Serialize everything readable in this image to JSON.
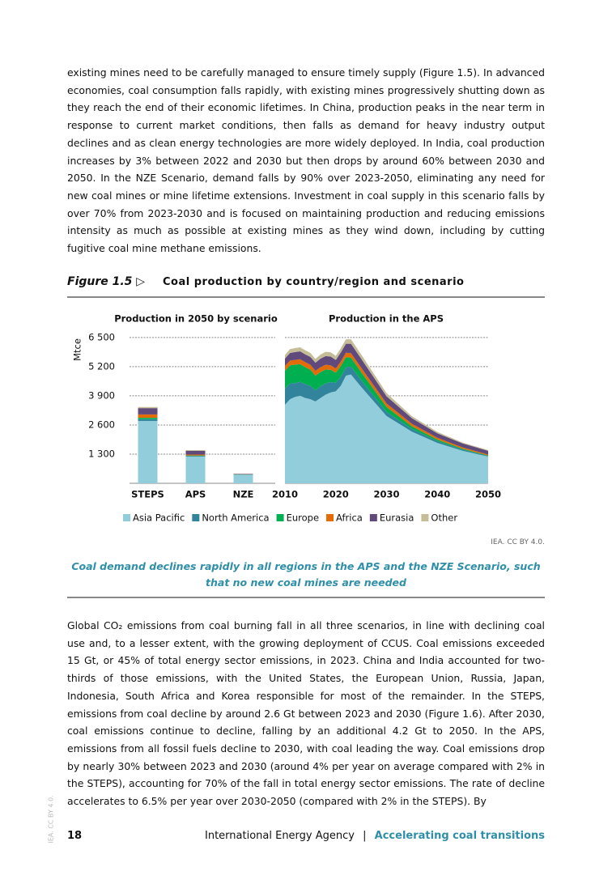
{
  "paragraphs": [
    "existing mines need to be carefully managed to ensure timely supply (Figure 1.5). In advanced economies, coal consumption falls rapidly, with existing mines progressively shutting down as they reach the end of their economic lifetimes. In China, production peaks in the near term in response to current market conditions, then falls as demand for heavy industry output declines and as clean energy technologies are more widely deployed. In India, coal production increases by 3% between 2022 and 2030 but then drops by around 60% between 2030 and 2050. In the NZE Scenario, demand falls by 90% over 2023-2050, eliminating any need for new coal mines or mine lifetime extensions. Investment in coal supply in this scenario falls by over 70% from 2023-2030 and is focused on maintaining production and reducing emissions intensity as much as possible at existing mines as they wind down, including by cutting fugitive coal mine methane emissions.",
    "Global CO₂ emissions from coal burning fall in all three scenarios, in line with declining coal use and, to a lesser extent, with the growing deployment of CCUS. Coal emissions exceeded 15 Gt, or 45% of total energy sector emissions, in 2023. China and India accounted for two-thirds of those emissions, with the United States, the European Union, Russia, Japan, Indonesia, South Africa and Korea responsible for most of the remainder. In the STEPS, emissions from coal decline by around 2.6 Gt between 2023 and 2030 (Figure 1.6). After 2030, coal emissions continue to decline, falling by an additional 4.2 Gt to 2050. In the APS, emissions from all fossil fuels decline to 2030, with coal leading the way. Coal emissions drop by nearly 30% between 2023 and 2030 (around 4% per year on average compared with 2% in the STEPS), accounting for 70% of the fall in total energy sector emissions. The rate of decline accelerates to 6.5% per year over 2030-2050 (compared with 2% in the STEPS). By"
  ],
  "figure": {
    "label": "Figure 1.5 ▷",
    "title": "Coal production by country/region and scenario",
    "credit": "IEA. CC BY 4.0.",
    "caption": "Coal demand declines rapidly in all regions in the APS and the NZE Scenario, such that no new coal mines are needed"
  },
  "footer": {
    "page": "18",
    "org": "International Energy Agency",
    "separator": "|",
    "section": "Accelerating coal transitions",
    "side": "IEA. CC BY 4.0."
  },
  "chart_data": [
    {
      "type": "bar",
      "stacked": true,
      "title": "Production in 2050 by scenario",
      "y_label": "Mtce",
      "categories": [
        "STEPS",
        "APS",
        "NZE"
      ],
      "series": [
        {
          "name": "Asia Pacific",
          "color": "#92cddc",
          "values": [
            2780,
            1190,
            380
          ]
        },
        {
          "name": "North America",
          "color": "#31849b",
          "values": [
            80,
            30,
            10
          ]
        },
        {
          "name": "Europe",
          "color": "#00b050",
          "values": [
            60,
            20,
            5
          ]
        },
        {
          "name": "Africa",
          "color": "#e36c09",
          "values": [
            150,
            40,
            10
          ]
        },
        {
          "name": "Eurasia",
          "color": "#604a7b",
          "values": [
            280,
            170,
            20
          ]
        },
        {
          "name": "Other",
          "color": "#c4bd97",
          "values": [
            50,
            30,
            5
          ]
        }
      ],
      "ylim": [
        0,
        7000
      ],
      "yticks": [
        {
          "value": 1300,
          "label": "1 300"
        },
        {
          "value": 2600,
          "label": "2 600"
        },
        {
          "value": 3900,
          "label": "3 900"
        },
        {
          "value": 5200,
          "label": "5 200"
        },
        {
          "value": 6500,
          "label": "6 500"
        }
      ],
      "grid": true,
      "legend": "bottom"
    },
    {
      "type": "area",
      "stacked": true,
      "title": "Production in the APS",
      "x": [
        2010,
        2011,
        2012,
        2013,
        2014,
        2015,
        2016,
        2017,
        2018,
        2019,
        2020,
        2021,
        2022,
        2023,
        2025,
        2030,
        2035,
        2040,
        2045,
        2050
      ],
      "series": [
        {
          "color": "#92cddc",
          "values": [
            3500,
            3750,
            3850,
            3900,
            3800,
            3750,
            3650,
            3800,
            3950,
            4050,
            4100,
            4350,
            4800,
            4850,
            4300,
            3000,
            2300,
            1800,
            1450,
            1190
          ]
        },
        {
          "color": "#31849b",
          "values": [
            720,
            700,
            620,
            620,
            620,
            590,
            500,
            520,
            500,
            460,
            380,
            400,
            380,
            350,
            300,
            180,
            120,
            80,
            50,
            30
          ]
        },
        {
          "color": "#00b050",
          "values": [
            800,
            810,
            820,
            790,
            760,
            730,
            650,
            640,
            620,
            550,
            450,
            480,
            440,
            400,
            360,
            220,
            120,
            70,
            40,
            20
          ]
        },
        {
          "color": "#e36c09",
          "values": [
            210,
            210,
            210,
            220,
            220,
            215,
            215,
            215,
            210,
            200,
            190,
            200,
            200,
            200,
            195,
            160,
            110,
            80,
            55,
            40
          ]
        },
        {
          "color": "#604a7b",
          "values": [
            330,
            340,
            350,
            350,
            345,
            350,
            360,
            380,
            390,
            390,
            380,
            400,
            400,
            420,
            400,
            320,
            250,
            200,
            180,
            170
          ]
        },
        {
          "color": "#c4bd97",
          "values": [
            160,
            170,
            180,
            180,
            180,
            180,
            170,
            180,
            190,
            190,
            180,
            190,
            200,
            200,
            190,
            140,
            90,
            60,
            40,
            30
          ]
        }
      ],
      "xlim": [
        2010,
        2050
      ],
      "xticks": [
        2010,
        2020,
        2030,
        2040,
        2050
      ],
      "ylim": [
        0,
        7000
      ],
      "yticks": [
        1300,
        2600,
        3900,
        5200,
        6500
      ],
      "grid": true
    }
  ]
}
